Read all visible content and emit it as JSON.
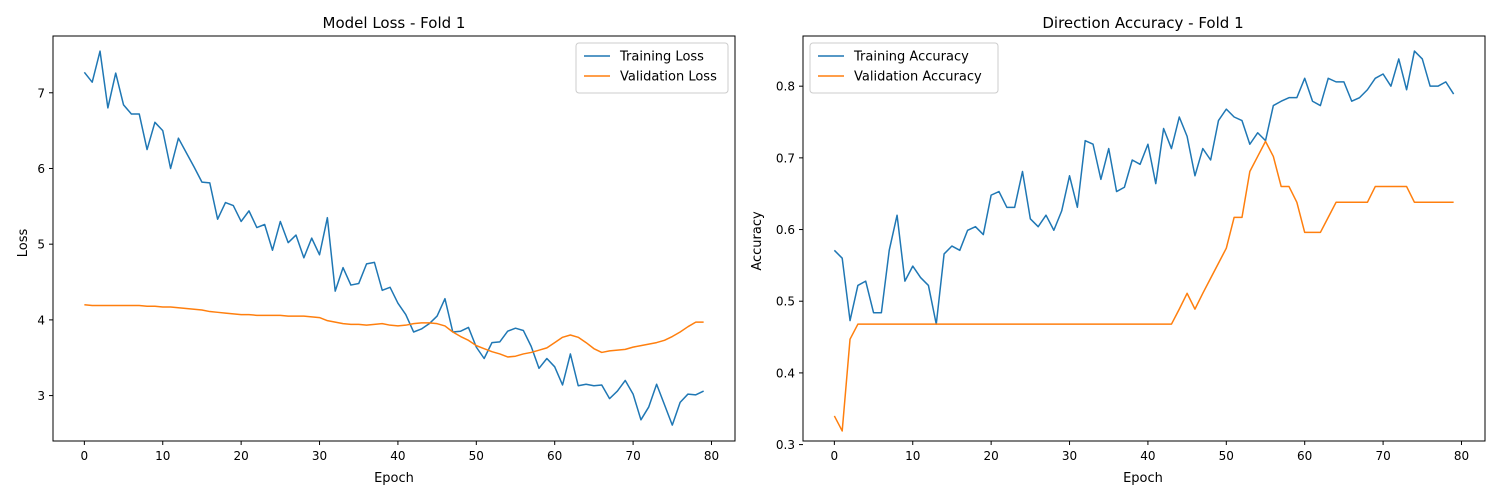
{
  "chart_data": [
    {
      "type": "line",
      "title": "Model Loss - Fold 1",
      "xlabel": "Epoch",
      "ylabel": "Loss",
      "xlim": [
        -4,
        83
      ],
      "ylim": [
        2.4,
        7.75
      ],
      "xticks": [
        0,
        10,
        20,
        30,
        40,
        50,
        60,
        70,
        80
      ],
      "yticks": [
        3,
        4,
        5,
        6,
        7
      ],
      "yticks_precision": 0,
      "legend_loc": "upper-right",
      "series": [
        {
          "name": "Training Loss",
          "color": "#1f77b4",
          "values": [
            7.27,
            7.14,
            7.55,
            6.8,
            7.26,
            6.84,
            6.72,
            6.72,
            6.25,
            6.61,
            6.5,
            6.0,
            6.4,
            6.21,
            6.02,
            5.82,
            5.81,
            5.33,
            5.55,
            5.51,
            5.3,
            5.44,
            5.22,
            5.26,
            4.92,
            5.3,
            5.02,
            5.12,
            4.82,
            5.08,
            4.86,
            5.35,
            4.38,
            4.69,
            4.46,
            4.48,
            4.74,
            4.76,
            4.39,
            4.43,
            4.22,
            4.07,
            3.84,
            3.88,
            3.95,
            4.05,
            4.28,
            3.84,
            3.85,
            3.9,
            3.64,
            3.49,
            3.7,
            3.71,
            3.85,
            3.89,
            3.86,
            3.65,
            3.36,
            3.49,
            3.38,
            3.14,
            3.55,
            3.13,
            3.15,
            3.13,
            3.14,
            2.96,
            3.06,
            3.2,
            3.02,
            2.68,
            2.85,
            3.15,
            2.88,
            2.61,
            2.91,
            3.02,
            3.01,
            3.06
          ]
        },
        {
          "name": "Validation Loss",
          "color": "#ff7f0e",
          "values": [
            4.2,
            4.19,
            4.19,
            4.19,
            4.19,
            4.19,
            4.19,
            4.19,
            4.18,
            4.18,
            4.17,
            4.17,
            4.16,
            4.15,
            4.14,
            4.13,
            4.11,
            4.1,
            4.09,
            4.08,
            4.07,
            4.07,
            4.06,
            4.06,
            4.06,
            4.06,
            4.05,
            4.05,
            4.05,
            4.04,
            4.03,
            3.99,
            3.97,
            3.95,
            3.94,
            3.94,
            3.93,
            3.94,
            3.95,
            3.93,
            3.92,
            3.93,
            3.95,
            3.96,
            3.96,
            3.95,
            3.92,
            3.84,
            3.78,
            3.73,
            3.66,
            3.62,
            3.58,
            3.55,
            3.51,
            3.52,
            3.55,
            3.57,
            3.6,
            3.63,
            3.7,
            3.77,
            3.8,
            3.77,
            3.7,
            3.62,
            3.57,
            3.59,
            3.6,
            3.61,
            3.64,
            3.66,
            3.68,
            3.7,
            3.73,
            3.78,
            3.84,
            3.91,
            3.97,
            3.97
          ]
        }
      ]
    },
    {
      "type": "line",
      "title": "Direction Accuracy - Fold 1",
      "xlabel": "Epoch",
      "ylabel": "Accuracy",
      "xlim": [
        -4,
        83
      ],
      "ylim": [
        0.305,
        0.87
      ],
      "xticks": [
        0,
        10,
        20,
        30,
        40,
        50,
        60,
        70,
        80
      ],
      "yticks": [
        0.3,
        0.4,
        0.5,
        0.6,
        0.7,
        0.8
      ],
      "yticks_precision": 1,
      "legend_loc": "upper-left",
      "series": [
        {
          "name": "Training Accuracy",
          "color": "#1f77b4",
          "values": [
            0.571,
            0.56,
            0.473,
            0.522,
            0.528,
            0.484,
            0.484,
            0.571,
            0.62,
            0.528,
            0.549,
            0.533,
            0.522,
            0.468,
            0.566,
            0.577,
            0.571,
            0.599,
            0.604,
            0.593,
            0.648,
            0.653,
            0.631,
            0.631,
            0.681,
            0.615,
            0.604,
            0.62,
            0.599,
            0.626,
            0.675,
            0.631,
            0.724,
            0.719,
            0.67,
            0.713,
            0.653,
            0.659,
            0.697,
            0.691,
            0.719,
            0.664,
            0.741,
            0.713,
            0.757,
            0.73,
            0.675,
            0.713,
            0.697,
            0.752,
            0.768,
            0.757,
            0.752,
            0.719,
            0.735,
            0.724,
            0.773,
            0.779,
            0.784,
            0.784,
            0.811,
            0.779,
            0.773,
            0.811,
            0.806,
            0.806,
            0.779,
            0.784,
            0.795,
            0.811,
            0.817,
            0.8,
            0.838,
            0.795,
            0.849,
            0.838,
            0.8,
            0.8,
            0.806,
            0.789
          ]
        },
        {
          "name": "Validation Accuracy",
          "color": "#ff7f0e",
          "values": [
            0.34,
            0.319,
            0.447,
            0.468,
            0.468,
            0.468,
            0.468,
            0.468,
            0.468,
            0.468,
            0.468,
            0.468,
            0.468,
            0.468,
            0.468,
            0.468,
            0.468,
            0.468,
            0.468,
            0.468,
            0.468,
            0.468,
            0.468,
            0.468,
            0.468,
            0.468,
            0.468,
            0.468,
            0.468,
            0.468,
            0.468,
            0.468,
            0.468,
            0.468,
            0.468,
            0.468,
            0.468,
            0.468,
            0.468,
            0.468,
            0.468,
            0.468,
            0.468,
            0.468,
            0.489,
            0.511,
            0.489,
            0.511,
            0.532,
            0.553,
            0.574,
            0.617,
            0.617,
            0.681,
            0.702,
            0.723,
            0.702,
            0.66,
            0.66,
            0.638,
            0.596,
            0.596,
            0.596,
            0.617,
            0.638,
            0.638,
            0.638,
            0.638,
            0.638,
            0.66,
            0.66,
            0.66,
            0.66,
            0.66,
            0.638,
            0.638,
            0.638,
            0.638,
            0.638,
            0.638
          ]
        }
      ]
    }
  ]
}
